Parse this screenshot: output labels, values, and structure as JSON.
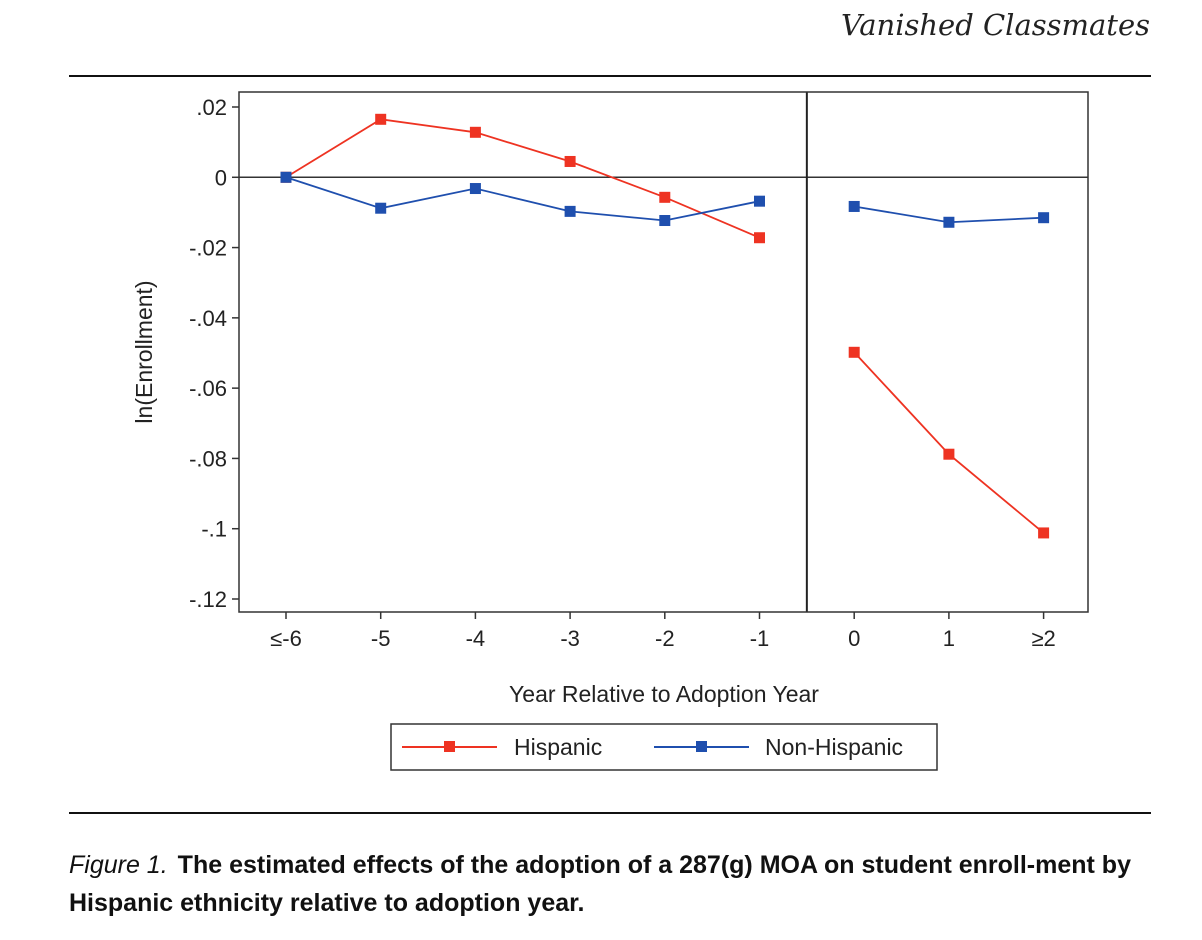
{
  "header": {
    "running_title": "Vanished Classmates"
  },
  "caption": {
    "label": "Figure 1.",
    "text": "The estimated effects of the adoption of a 287(g) MOA on student enroll-ment by Hispanic ethnicity relative to adoption year."
  },
  "chart_data": {
    "type": "line",
    "categories": [
      "≤-6",
      "-5",
      "-4",
      "-3",
      "-2",
      "-1",
      "0",
      "1",
      "≥2"
    ],
    "xlabel": "Year Relative to Adoption Year",
    "ylabel": "ln(Enrollment)",
    "ylim": [
      -0.12,
      0.02
    ],
    "yticks": [
      0.02,
      0,
      -0.02,
      -0.04,
      -0.06,
      -0.08,
      -0.1,
      -0.12
    ],
    "ytick_labels": [
      ".02",
      "0",
      "-.02",
      "-.04",
      "-.06",
      "-.08",
      "-.1",
      "-.12"
    ],
    "reference_lines": {
      "horizontal_y": 0,
      "vertical_between": [
        "-1",
        "0"
      ]
    },
    "segments_break_after": "-1",
    "series": [
      {
        "name": "Hispanic",
        "color": "#ee3322",
        "values": [
          0,
          0.0165,
          0.0128,
          0.0045,
          -0.0057,
          -0.0172,
          -0.0498,
          -0.0788,
          -0.1012
        ]
      },
      {
        "name": "Non-Hispanic",
        "color": "#1f4fae",
        "values": [
          0,
          -0.0088,
          -0.0032,
          -0.0097,
          -0.0123,
          -0.0068,
          -0.0083,
          -0.0128,
          -0.0115
        ]
      }
    ],
    "legend_position": "bottom-center"
  }
}
